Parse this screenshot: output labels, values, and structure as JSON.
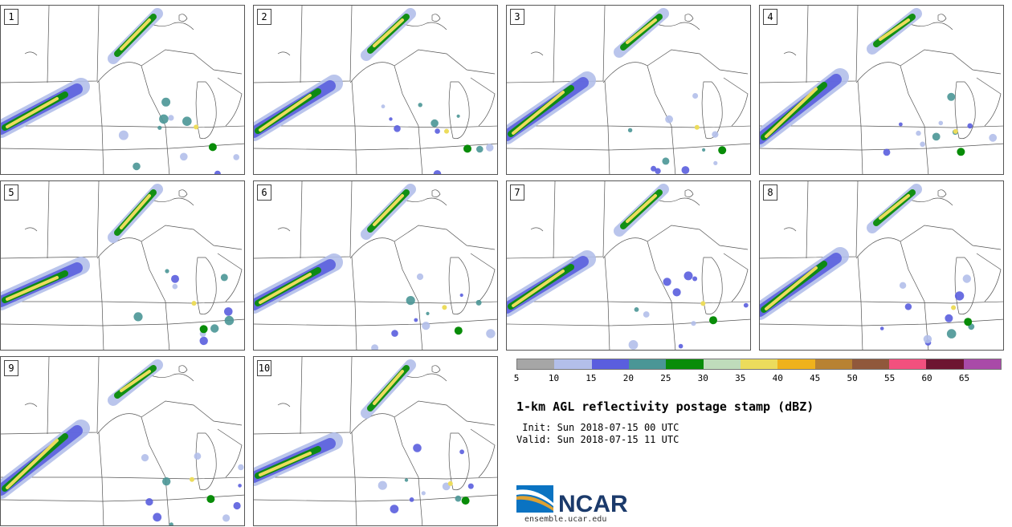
{
  "panels": [
    {
      "label": "1"
    },
    {
      "label": "2"
    },
    {
      "label": "3"
    },
    {
      "label": "4"
    },
    {
      "label": "5"
    },
    {
      "label": "6"
    },
    {
      "label": "7"
    },
    {
      "label": "8"
    },
    {
      "label": "9"
    },
    {
      "label": "10"
    }
  ],
  "colorbar": {
    "colors": [
      "#a6a6a6",
      "#b3bfea",
      "#5a5ede",
      "#4a9696",
      "#088c08",
      "#bfdcbb",
      "#ecdc5c",
      "#efb21c",
      "#b88232",
      "#90583b",
      "#f2507e",
      "#6d1531",
      "#a94aa8"
    ],
    "ticks": [
      "5",
      "10",
      "15",
      "20",
      "25",
      "30",
      "35",
      "40",
      "45",
      "50",
      "55",
      "60",
      "65"
    ]
  },
  "title": "1-km AGL reflectivity postage stamp (dBZ)",
  "init_line": " Init: Sun 2018-07-15 00 UTC",
  "valid_line": "Valid: Sun 2018-07-15 11 UTC",
  "logo": {
    "text": "NCAR",
    "url": "ensemble.ucar.edu",
    "color": "#1b3a6b"
  }
}
